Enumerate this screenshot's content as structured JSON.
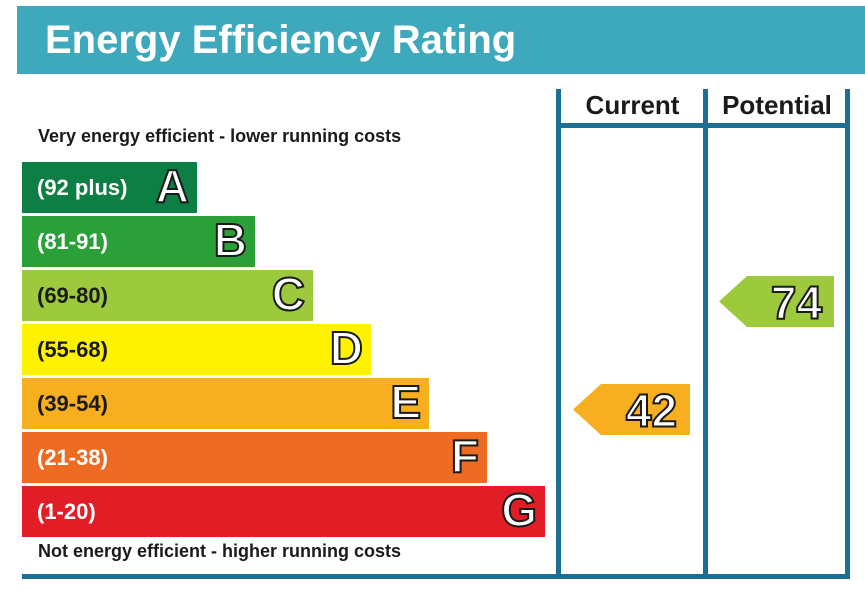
{
  "title": "Energy Efficiency Rating",
  "top_note": "Very energy efficient - lower running costs",
  "bottom_note": "Not energy efficient - higher running costs",
  "columns": {
    "current": "Current",
    "potential": "Potential"
  },
  "colors": {
    "header": "#3ea8bc",
    "frame": "#1c6f92"
  },
  "chart_data": {
    "type": "bar",
    "bands": [
      {
        "letter": "A",
        "range": "(92 plus)",
        "color": "#0d7f45"
      },
      {
        "letter": "B",
        "range": "(81-91)",
        "color": "#2ba039"
      },
      {
        "letter": "C",
        "range": "(69-80)",
        "color": "#9dca3c"
      },
      {
        "letter": "D",
        "range": "(55-68)",
        "color": "#fff200"
      },
      {
        "letter": "E",
        "range": "(39-54)",
        "color": "#f7ae1f"
      },
      {
        "letter": "F",
        "range": "(21-38)",
        "color": "#ed6b23"
      },
      {
        "letter": "G",
        "range": "(1-20)",
        "color": "#e31d25"
      }
    ],
    "current": {
      "value": 42,
      "band": "E",
      "color": "#f7ae1f"
    },
    "potential": {
      "value": 74,
      "band": "C",
      "color": "#9dca3c"
    }
  }
}
